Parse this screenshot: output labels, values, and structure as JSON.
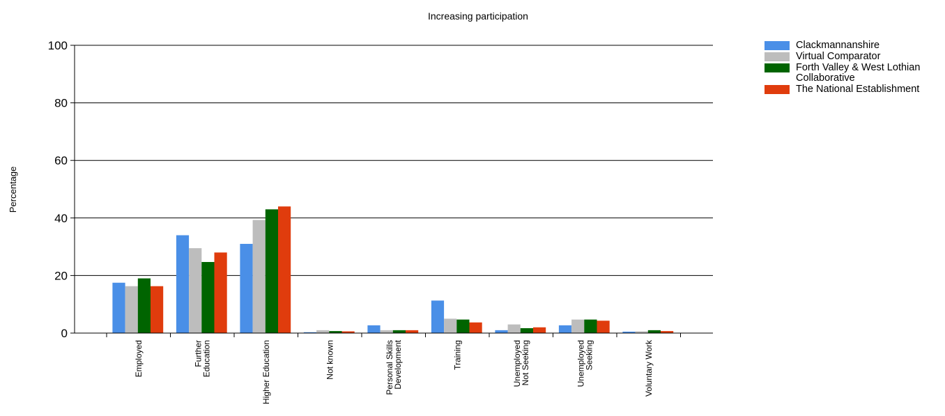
{
  "chart_data": {
    "type": "bar",
    "title": "Increasing participation",
    "ylabel": "Percentage",
    "xlabel": "",
    "ylim": [
      0,
      100
    ],
    "yticks": [
      0,
      20,
      40,
      60,
      80,
      100
    ],
    "grid": true,
    "legend_position": "top-right",
    "categories": [
      [
        "Employed"
      ],
      [
        "Further",
        "Education"
      ],
      [
        "Higher Education"
      ],
      [
        "Not known"
      ],
      [
        "Personal Skills",
        "Development"
      ],
      [
        "Training"
      ],
      [
        "Unemployed",
        "Not Seeking"
      ],
      [
        "Unemployed",
        "Seeking"
      ],
      [
        "Voluntary Work"
      ]
    ],
    "series": [
      {
        "name": "Clackmannanshire",
        "color": "#4a8fe7",
        "values": [
          17.5,
          34,
          31,
          0.3,
          2.7,
          11.3,
          1,
          2.7,
          0.5
        ]
      },
      {
        "name": "Virtual Comparator",
        "color": "#bdbdbd",
        "values": [
          16.3,
          29.5,
          39.3,
          1,
          1,
          5,
          3,
          4.7,
          0.6
        ]
      },
      {
        "name": "Forth Valley & West Lothian Collaborative",
        "color": "#006400",
        "values": [
          19,
          24.7,
          43,
          0.7,
          1,
          4.7,
          1.7,
          4.7,
          1
        ]
      },
      {
        "name": "The National Establishment",
        "color": "#e03c0d",
        "values": [
          16.3,
          28,
          44,
          0.6,
          1,
          3.7,
          2,
          4.3,
          0.7
        ]
      }
    ]
  }
}
